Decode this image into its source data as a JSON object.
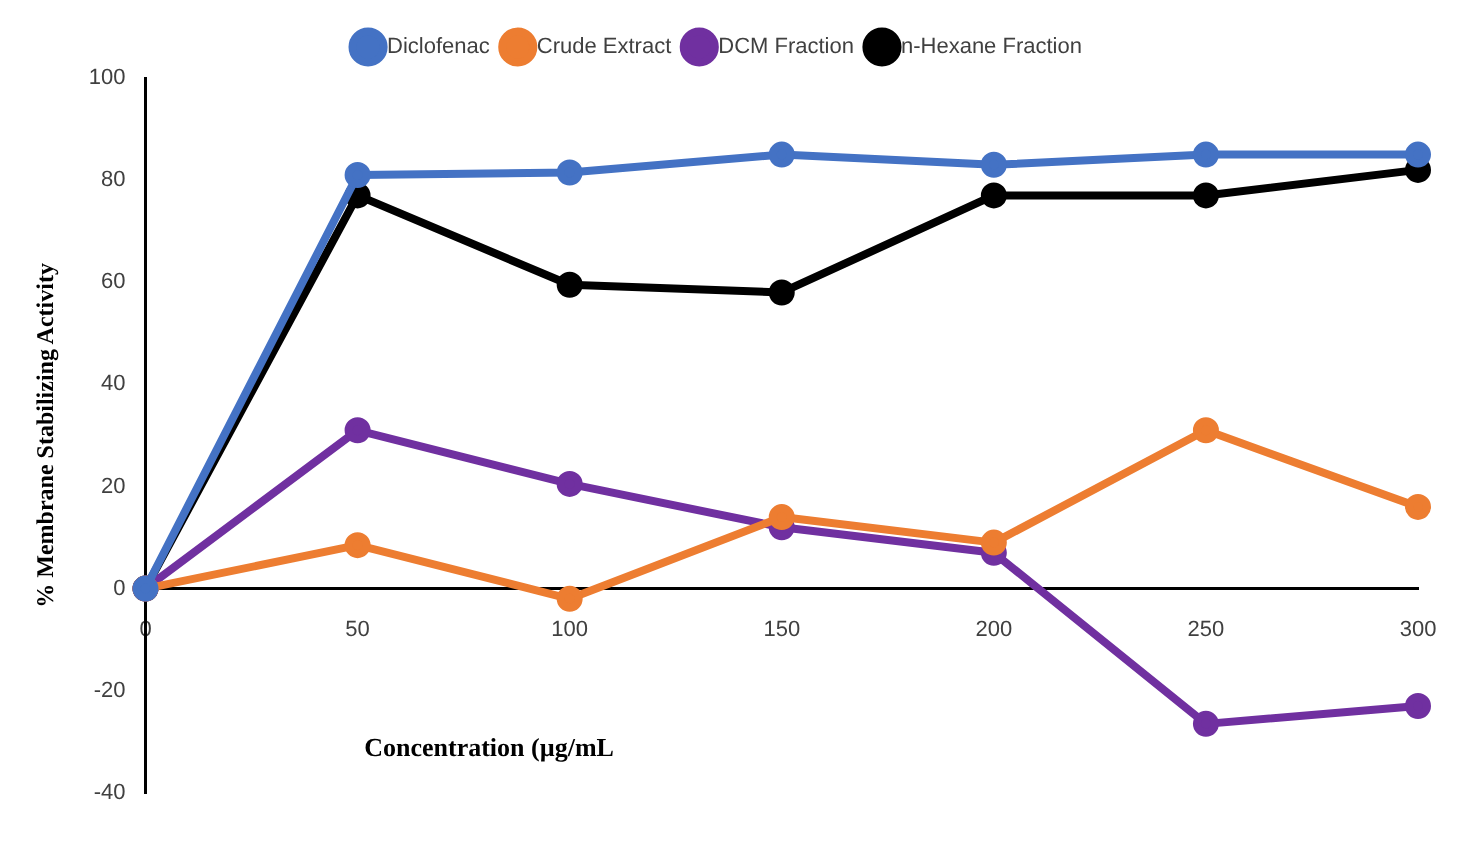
{
  "chart_data": {
    "type": "line",
    "xlabel": "Concentration (µg/mL",
    "ylabel": "% Membrane Stabilizing Activity",
    "x": [
      0,
      50,
      100,
      150,
      200,
      250,
      300
    ],
    "xlim": [
      0,
      300
    ],
    "xticks": [
      0,
      50,
      100,
      150,
      200,
      250,
      300
    ],
    "ylim": [
      -40,
      100
    ],
    "yticks": [
      -40,
      -20,
      0,
      20,
      40,
      60,
      80,
      100
    ],
    "grid": false,
    "legend": "top",
    "marker": "circle",
    "line_style": "solid",
    "series": [
      {
        "name": "Diclofenac",
        "color": "#4472c4",
        "values": [
          0,
          81,
          81.5,
          85,
          83,
          85,
          85
        ]
      },
      {
        "name": "Crude Extract",
        "color": "#ed7d31",
        "values": [
          0,
          8.5,
          -2,
          14,
          9,
          31,
          16
        ]
      },
      {
        "name": "DCM Fraction",
        "color": "#7030a0",
        "values": [
          0,
          31,
          20.5,
          12,
          7,
          -26.5,
          -23
        ]
      },
      {
        "name": "n-Hexane Fraction",
        "color": "#000000",
        "values": [
          0,
          77,
          59.5,
          58,
          77,
          77,
          82
        ]
      }
    ]
  }
}
